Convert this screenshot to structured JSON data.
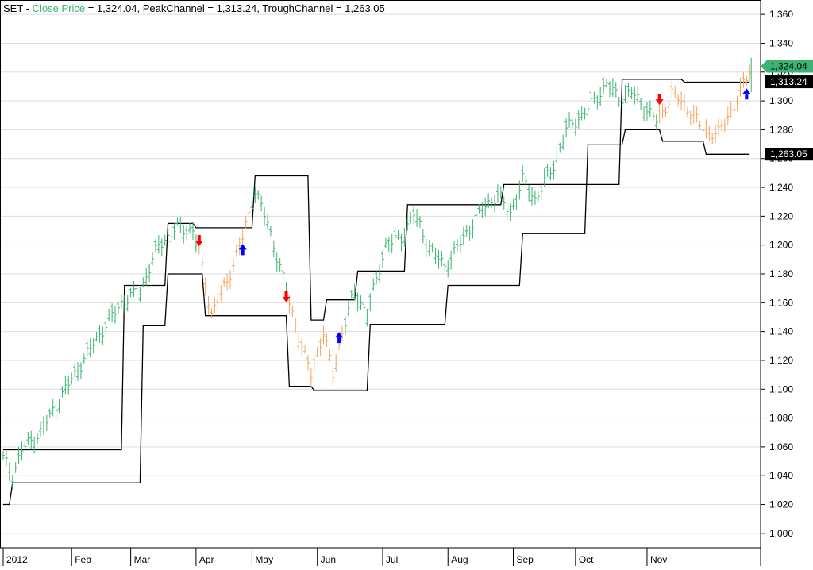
{
  "chart_data": {
    "type": "ohlc",
    "title": {
      "prefix": "SET - ",
      "close_label": "Close Price",
      "close_value_text": " = 1,324.04, ",
      "peak_label": "PeakChannel = 1,313.24, ",
      "trough_label": "TroughChannel = 1,263.05"
    },
    "y_axis": {
      "min": 990,
      "max": 1370,
      "ticks": [
        1000,
        1020,
        1040,
        1060,
        1080,
        1100,
        1120,
        1140,
        1160,
        1180,
        1200,
        1220,
        1240,
        1260,
        1280,
        1300,
        1320,
        1340,
        1360
      ],
      "tick_labels": [
        "1,000",
        "1,020",
        "1,040",
        "1,060",
        "1,080",
        "1,100",
        "1,120",
        "1,140",
        "1,160",
        "1,180",
        "1,200",
        "1,220",
        "1,240",
        "1,260",
        "1,280",
        "1,300",
        "1,320",
        "1,340",
        "1,360"
      ]
    },
    "x_axis": {
      "range": [
        0,
        243
      ],
      "month_ticks": [
        {
          "label": "2012",
          "day": 0
        },
        {
          "label": "Feb",
          "day": 22
        },
        {
          "label": "Mar",
          "day": 41
        },
        {
          "label": "Apr",
          "day": 62
        },
        {
          "label": "May",
          "day": 80
        },
        {
          "label": "Jun",
          "day": 101
        },
        {
          "label": "Jul",
          "day": 122
        },
        {
          "label": "Aug",
          "day": 143
        },
        {
          "label": "Sep",
          "day": 164
        },
        {
          "label": "Oct",
          "day": 184
        },
        {
          "label": "Nov",
          "day": 207
        }
      ]
    },
    "grid": true,
    "colors": {
      "up_trend": "#3cb371",
      "down_trend": "#f4a460",
      "channel": "#000000",
      "buy_arrow": "#0000ff",
      "sell_arrow": "#ff0000",
      "close_badge": "#3cb371",
      "channel_badge": "#000000"
    },
    "anchors": [
      [
        0,
        1052
      ],
      [
        3,
        1040
      ],
      [
        6,
        1058
      ],
      [
        12,
        1070
      ],
      [
        20,
        1100
      ],
      [
        30,
        1135
      ],
      [
        38,
        1160
      ],
      [
        44,
        1168
      ],
      [
        50,
        1200
      ],
      [
        56,
        1212
      ],
      [
        61,
        1210
      ],
      [
        63,
        1195
      ],
      [
        67,
        1152
      ],
      [
        72,
        1175
      ],
      [
        77,
        1205
      ],
      [
        81,
        1238
      ],
      [
        85,
        1215
      ],
      [
        89,
        1185
      ],
      [
        92,
        1160
      ],
      [
        96,
        1130
      ],
      [
        99,
        1110
      ],
      [
        103,
        1140
      ],
      [
        106,
        1110
      ],
      [
        109,
        1140
      ],
      [
        113,
        1168
      ],
      [
        117,
        1152
      ],
      [
        123,
        1200
      ],
      [
        128,
        1205
      ],
      [
        132,
        1222
      ],
      [
        137,
        1198
      ],
      [
        142,
        1185
      ],
      [
        148,
        1205
      ],
      [
        154,
        1225
      ],
      [
        159,
        1235
      ],
      [
        163,
        1222
      ],
      [
        167,
        1245
      ],
      [
        171,
        1232
      ],
      [
        177,
        1255
      ],
      [
        181,
        1280
      ],
      [
        186,
        1290
      ],
      [
        190,
        1300
      ],
      [
        194,
        1312
      ],
      [
        198,
        1302
      ],
      [
        202,
        1306
      ],
      [
        206,
        1296
      ],
      [
        210,
        1286
      ],
      [
        212,
        1292
      ],
      [
        215,
        1305
      ],
      [
        218,
        1300
      ],
      [
        221,
        1292
      ],
      [
        224,
        1283
      ],
      [
        227,
        1278
      ],
      [
        230,
        1277
      ],
      [
        233,
        1290
      ],
      [
        236,
        1300
      ],
      [
        240,
        1322
      ]
    ],
    "down_segments": [
      [
        63,
        79
      ],
      [
        92,
        109
      ],
      [
        211,
        240
      ]
    ],
    "peak_channel": [
      [
        0,
        1058
      ],
      [
        38,
        1058
      ],
      [
        39,
        1172
      ],
      [
        52,
        1172
      ],
      [
        53,
        1215
      ],
      [
        61,
        1215
      ],
      [
        62,
        1212
      ],
      [
        80,
        1212
      ],
      [
        81,
        1248
      ],
      [
        98,
        1248
      ],
      [
        99,
        1148
      ],
      [
        103,
        1148
      ],
      [
        104,
        1162
      ],
      [
        113,
        1162
      ],
      [
        114,
        1182
      ],
      [
        129,
        1182
      ],
      [
        130,
        1228
      ],
      [
        160,
        1228
      ],
      [
        161,
        1242
      ],
      [
        198,
        1242
      ],
      [
        199,
        1315
      ],
      [
        218,
        1315
      ],
      [
        219,
        1313
      ],
      [
        240,
        1313
      ]
    ],
    "trough_channel": [
      [
        0,
        1020
      ],
      [
        2,
        1020
      ],
      [
        3,
        1035
      ],
      [
        44,
        1035
      ],
      [
        45,
        1144
      ],
      [
        52,
        1144
      ],
      [
        53,
        1180
      ],
      [
        64,
        1180
      ],
      [
        65,
        1151
      ],
      [
        91,
        1151
      ],
      [
        92,
        1102
      ],
      [
        99,
        1102
      ],
      [
        100,
        1099
      ],
      [
        117,
        1099
      ],
      [
        118,
        1145
      ],
      [
        142,
        1145
      ],
      [
        143,
        1172
      ],
      [
        166,
        1172
      ],
      [
        167,
        1208
      ],
      [
        187,
        1208
      ],
      [
        188,
        1270
      ],
      [
        199,
        1270
      ],
      [
        200,
        1280
      ],
      [
        211,
        1280
      ],
      [
        212,
        1272
      ],
      [
        225,
        1272
      ],
      [
        226,
        1263
      ],
      [
        240,
        1263
      ]
    ],
    "signals": [
      {
        "type": "sell",
        "day": 63,
        "price": 1202
      },
      {
        "type": "buy",
        "day": 77,
        "price": 1198
      },
      {
        "type": "sell",
        "day": 91,
        "price": 1163
      },
      {
        "type": "buy",
        "day": 108,
        "price": 1137
      },
      {
        "type": "sell",
        "day": 211,
        "price": 1300
      },
      {
        "type": "buy",
        "day": 239,
        "price": 1306
      }
    ],
    "last_close": {
      "value": 1324.04,
      "label": "1,324.04"
    },
    "peak_value": {
      "value": 1313.24,
      "label": "1,313.24"
    },
    "trough_value": {
      "value": 1263.05,
      "label": "1,263.05"
    }
  }
}
